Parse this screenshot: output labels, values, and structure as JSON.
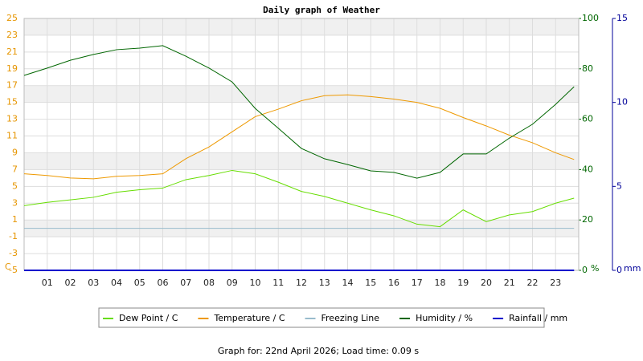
{
  "chart_data": {
    "type": "line",
    "title": "Daily graph of Weather",
    "caption": "Graph for: 22nd April 2026; Load time: 0.09 s",
    "y_label": "C",
    "y2_label": "%",
    "y3_label": "mm",
    "x": [
      0,
      1,
      2,
      3,
      4,
      5,
      6,
      7,
      8,
      9,
      10,
      11,
      12,
      13,
      14,
      15,
      16,
      17,
      18,
      19,
      20,
      21,
      22,
      23,
      23.8
    ],
    "xlim": [
      0,
      24
    ],
    "xticks": [
      {
        "value": 1,
        "label": "01"
      },
      {
        "value": 2,
        "label": "02"
      },
      {
        "value": 3,
        "label": "03"
      },
      {
        "value": 4,
        "label": "04"
      },
      {
        "value": 5,
        "label": "05"
      },
      {
        "value": 6,
        "label": "06"
      },
      {
        "value": 7,
        "label": "07"
      },
      {
        "value": 8,
        "label": "08"
      },
      {
        "value": 9,
        "label": "09"
      },
      10,
      11,
      12,
      13,
      14,
      15,
      16,
      17,
      18,
      19,
      20,
      21,
      22,
      23
    ],
    "ylim": [
      -5,
      25
    ],
    "yticks": [
      -5,
      -3,
      -1,
      1,
      3,
      5,
      7,
      9,
      11,
      13,
      15,
      17,
      19,
      21,
      23,
      25
    ],
    "y2lim": [
      0,
      100
    ],
    "y2ticks": [
      0,
      20,
      40,
      60,
      80,
      100
    ],
    "y3lim": [
      0,
      15
    ],
    "y3ticks": [
      0,
      5,
      10,
      15
    ],
    "grid": true,
    "legend": "bottom",
    "series": [
      {
        "name": "Dew Point / C",
        "color": "#66dd00",
        "values": [
          2.7,
          3.1,
          3.4,
          3.7,
          4.3,
          4.6,
          4.8,
          5.8,
          6.3,
          6.9,
          6.5,
          5.5,
          4.4,
          3.8,
          3.0,
          2.2,
          1.5,
          0.5,
          0.2,
          2.2,
          0.8,
          1.6,
          2.0,
          3.0,
          3.6
        ]
      },
      {
        "name": "Temperature / C",
        "color": "#ee9900",
        "values": [
          6.5,
          6.3,
          6.0,
          5.9,
          6.2,
          6.3,
          6.5,
          8.3,
          9.7,
          11.5,
          13.3,
          14.2,
          15.2,
          15.8,
          15.9,
          15.7,
          15.4,
          15.0,
          14.3,
          13.2,
          12.2,
          11.1,
          10.2,
          9.0,
          8.2
        ]
      },
      {
        "name": "Freezing Line",
        "color": "#99bbcc",
        "values": [
          0,
          0,
          0,
          0,
          0,
          0,
          0,
          0,
          0,
          0,
          0,
          0,
          0,
          0,
          0,
          0,
          0,
          0,
          0,
          0,
          0,
          0,
          0,
          0,
          0
        ]
      },
      {
        "name": "Humidity / %",
        "color": "#006600",
        "axis": "y2",
        "values": [
          77.4,
          80.3,
          83.4,
          85.7,
          87.6,
          88.2,
          89.2,
          85.0,
          80.3,
          74.8,
          64.3,
          56.4,
          48.4,
          44.3,
          42.0,
          39.5,
          38.9,
          36.6,
          38.9,
          46.2,
          46.2,
          52.5,
          58.0,
          65.9,
          72.9
        ]
      },
      {
        "name": "Rainfall / mm",
        "color": "#0000cc",
        "axis": "y3",
        "values": [
          0,
          0,
          0,
          0,
          0,
          0,
          0,
          0,
          0,
          0,
          0,
          0,
          0,
          0,
          0,
          0,
          0,
          0,
          0,
          0,
          0,
          0,
          0,
          0,
          0
        ]
      }
    ]
  }
}
